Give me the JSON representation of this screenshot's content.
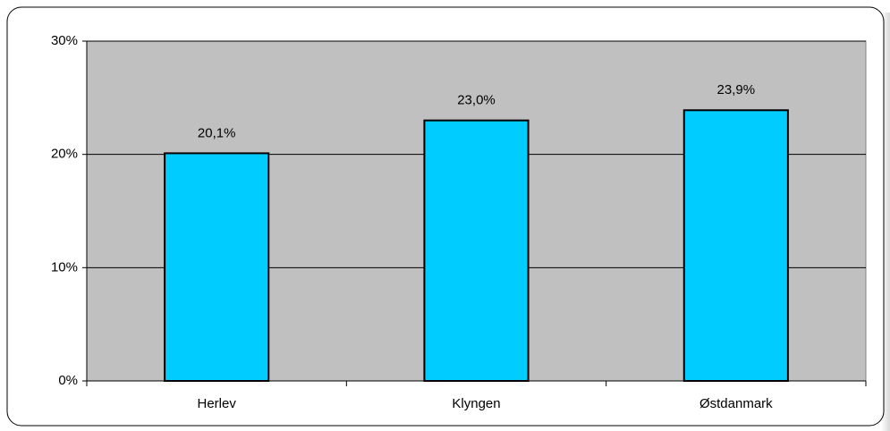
{
  "chart_data": {
    "type": "bar",
    "categories": [
      "Herlev",
      "Klyngen",
      "Østdanmark"
    ],
    "values": [
      20.1,
      23.0,
      23.9
    ],
    "value_labels": [
      "20,1%",
      "23,0%",
      "23,9%"
    ],
    "color": "#00ccff",
    "ylim": [
      0,
      30
    ],
    "yticks": [
      {
        "value": 0,
        "label": "0%"
      },
      {
        "value": 10,
        "label": "10%"
      },
      {
        "value": 20,
        "label": "20%"
      },
      {
        "value": 30,
        "label": "30%"
      }
    ],
    "grid": true
  }
}
